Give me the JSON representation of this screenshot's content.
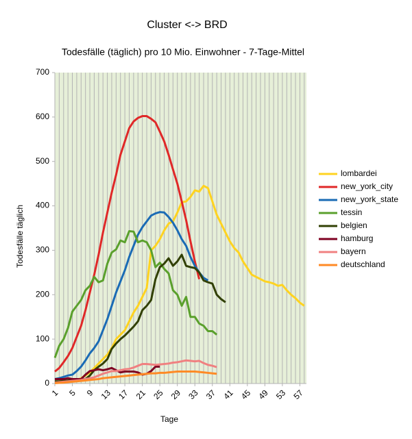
{
  "chart_data": {
    "type": "line",
    "title": "Cluster <-> BRD",
    "subtitle": "Todesfälle (täglich) pro 10 Mio. Einwohner - 7-Tage-Mittel",
    "x_label": "Tage",
    "y_label": "Todesfälle täglich",
    "x": [
      1,
      2,
      3,
      4,
      5,
      6,
      7,
      8,
      9,
      10,
      11,
      12,
      13,
      14,
      15,
      16,
      17,
      18,
      19,
      20,
      21,
      22,
      23,
      24,
      25,
      26,
      27,
      28,
      29,
      30,
      31,
      32,
      33,
      34,
      35,
      36,
      37,
      38,
      39,
      40,
      41,
      42,
      43,
      44,
      45,
      46,
      47,
      48,
      49,
      50,
      51,
      52,
      53,
      54,
      55,
      56,
      57,
      58
    ],
    "xlim": [
      1,
      58.5
    ],
    "xticks": [
      1,
      5,
      9,
      13,
      17,
      21,
      25,
      29,
      33,
      37,
      41,
      45,
      49,
      53,
      57
    ],
    "ylim": [
      0,
      700
    ],
    "yticks": [
      0,
      100,
      200,
      300,
      400,
      500,
      600,
      700
    ],
    "grid": true,
    "legend": "right",
    "series": [
      {
        "name": "lombardei",
        "color": "#ffd320",
        "values": [
          null,
          null,
          null,
          null,
          5,
          8,
          12,
          18,
          25,
          35,
          45,
          55,
          65,
          80,
          100,
          110,
          120,
          140,
          160,
          175,
          195,
          215,
          300,
          310,
          325,
          345,
          360,
          365,
          385,
          408,
          410,
          420,
          435,
          432,
          445,
          440,
          410,
          380,
          360,
          340,
          320,
          305,
          295,
          275,
          260,
          245,
          240,
          235,
          230,
          228,
          225,
          220,
          222,
          210,
          200,
          192,
          182,
          175
        ]
      },
      {
        "name": "new_york_city",
        "color": "#e02828",
        "values": [
          27,
          35,
          48,
          62,
          80,
          105,
          130,
          165,
          205,
          245,
          290,
          340,
          385,
          430,
          470,
          515,
          545,
          575,
          590,
          598,
          602,
          602,
          596,
          588,
          567,
          545,
          515,
          482,
          450,
          410,
          368,
          320,
          275,
          235,
          null,
          null,
          null,
          null,
          null,
          null,
          null,
          null,
          null,
          null,
          null,
          null,
          null,
          null,
          null,
          null,
          null,
          null,
          null,
          null,
          null,
          null,
          null,
          null
        ]
      },
      {
        "name": "new_york_state",
        "color": "#1a6bb5",
        "values": [
          10,
          12,
          15,
          18,
          20,
          28,
          38,
          52,
          68,
          80,
          95,
          120,
          145,
          175,
          205,
          230,
          255,
          285,
          310,
          335,
          352,
          365,
          378,
          383,
          386,
          385,
          375,
          362,
          345,
          325,
          310,
          285,
          265,
          250,
          238,
          232,
          null,
          null,
          null,
          null,
          null,
          null,
          null,
          null,
          null,
          null,
          null,
          null,
          null,
          null,
          null,
          null,
          null,
          null,
          null,
          null,
          null,
          null
        ]
      },
      {
        "name": "tessin",
        "color": "#5aa02c",
        "values": [
          58,
          85,
          100,
          125,
          162,
          175,
          188,
          210,
          220,
          240,
          228,
          232,
          270,
          295,
          302,
          322,
          318,
          343,
          342,
          318,
          322,
          318,
          300,
          262,
          272,
          258,
          248,
          210,
          200,
          175,
          195,
          150,
          150,
          135,
          130,
          118,
          118,
          110,
          null,
          null,
          null,
          null,
          null,
          null,
          null,
          null,
          null,
          null,
          null,
          null,
          null,
          null,
          null,
          null,
          null,
          null,
          null,
          null
        ]
      },
      {
        "name": "belgien",
        "color": "#314004",
        "values": [
          5,
          5,
          6,
          7,
          8,
          8,
          9,
          10,
          18,
          30,
          38,
          45,
          55,
          78,
          90,
          100,
          108,
          118,
          128,
          140,
          165,
          175,
          188,
          235,
          262,
          270,
          282,
          265,
          275,
          290,
          265,
          262,
          260,
          250,
          232,
          228,
          225,
          200,
          190,
          183,
          null,
          null,
          null,
          null,
          null,
          null,
          null,
          null,
          null,
          null,
          null,
          null,
          null,
          null,
          null,
          null,
          null,
          null
        ]
      },
      {
        "name": "hamburg",
        "color": "#7e0021",
        "values": [
          10,
          10,
          10,
          12,
          10,
          10,
          10,
          20,
          28,
          30,
          32,
          30,
          32,
          35,
          30,
          25,
          27,
          27,
          27,
          25,
          20,
          22,
          28,
          38,
          38,
          null,
          null,
          null,
          null,
          null,
          null,
          null,
          null,
          null,
          null,
          null,
          null,
          null,
          null,
          null,
          null,
          null,
          null,
          null,
          null,
          null,
          null,
          null,
          null,
          null,
          null,
          null,
          null,
          null,
          null,
          null,
          null,
          null
        ]
      },
      {
        "name": "bayern",
        "color": "#f08080",
        "values": [
          2,
          3,
          4,
          5,
          6,
          7,
          8,
          10,
          12,
          14,
          18,
          22,
          25,
          28,
          28,
          30,
          32,
          33,
          36,
          40,
          44,
          44,
          43,
          42,
          43,
          44,
          45,
          47,
          48,
          50,
          52,
          51,
          50,
          51,
          46,
          42,
          40,
          37,
          null,
          null,
          null,
          null,
          null,
          null,
          null,
          null,
          null,
          null,
          null,
          null,
          null,
          null,
          null,
          null,
          null,
          null,
          null,
          null
        ]
      },
      {
        "name": "deutschland",
        "color": "#ff8a25",
        "values": [
          1,
          1.5,
          2,
          3,
          4,
          5,
          6,
          7,
          8,
          9,
          10,
          12,
          13,
          14,
          15,
          16,
          17,
          18,
          19,
          20,
          21,
          22,
          23,
          23,
          24,
          24,
          25,
          26,
          27,
          27,
          27,
          27,
          27,
          26,
          25,
          24,
          23,
          22,
          null,
          null,
          null,
          null,
          null,
          null,
          null,
          null,
          null,
          null,
          null,
          null,
          null,
          null,
          null,
          null,
          null,
          null,
          null,
          null
        ]
      }
    ]
  }
}
